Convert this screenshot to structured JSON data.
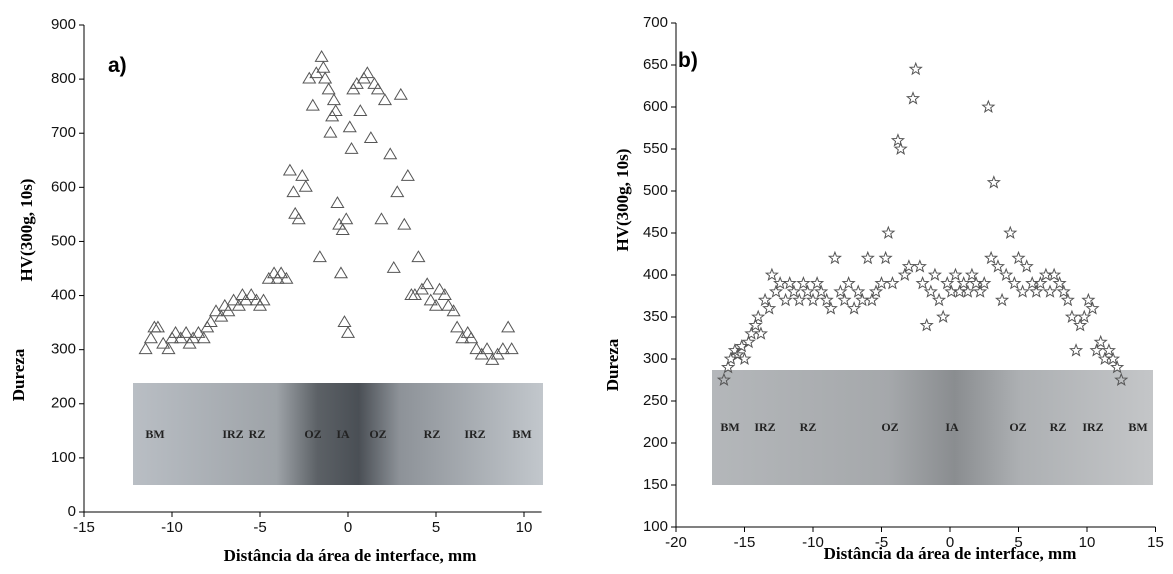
{
  "chart_data": [
    {
      "type": "scatter",
      "panel_label": "a)",
      "xlabel": "Distância da área de interface, mm",
      "ylabel": "HV(300g, 10s)",
      "ylabel_note": "Dureza",
      "marker": "triangle",
      "color": "#555555",
      "xlim": [
        -15,
        11
      ],
      "xticks": [
        -15,
        -10,
        -5,
        0,
        5,
        10
      ],
      "ylim": [
        0,
        900
      ],
      "yticks": [
        0,
        100,
        200,
        300,
        400,
        500,
        600,
        700,
        800,
        900
      ],
      "annotations": [
        "BM",
        "IRZ",
        "RZ",
        "OZ",
        "IA",
        "OZ",
        "RZ",
        "IRZ",
        "BM"
      ],
      "x": [
        -11.5,
        -11.2,
        -11,
        -10.8,
        -10.5,
        -10.2,
        -10,
        -9.8,
        -9.5,
        -9.2,
        -9,
        -8.8,
        -8.5,
        -8.2,
        -8,
        -7.8,
        -7.5,
        -7.2,
        -7,
        -6.8,
        -6.5,
        -6.2,
        -6,
        -5.8,
        -5.5,
        -5.2,
        -5,
        -4.8,
        -4.5,
        -4.2,
        -4,
        -3.8,
        -3.5,
        -3.3,
        -3.1,
        -3,
        -2.8,
        -2.6,
        -2.4,
        -2.2,
        -2,
        -1.8,
        -1.6,
        -1.5,
        -1.4,
        -1.3,
        -1.1,
        -1,
        -0.9,
        -0.8,
        -0.7,
        -0.6,
        -0.5,
        -0.4,
        -0.3,
        -0.2,
        -0.1,
        0,
        0.1,
        0.2,
        0.3,
        0.5,
        0.7,
        0.9,
        1.1,
        1.3,
        1.5,
        1.7,
        1.9,
        2.1,
        2.4,
        2.6,
        2.8,
        3,
        3.2,
        3.4,
        3.6,
        3.8,
        4,
        4.2,
        4.5,
        4.7,
        5,
        5.2,
        5.5,
        5.7,
        6,
        6.2,
        6.5,
        6.8,
        7,
        7.3,
        7.6,
        7.9,
        8.2,
        8.5,
        8.8,
        9.1,
        9.3
      ],
      "values": [
        300,
        320,
        340,
        340,
        310,
        300,
        320,
        330,
        320,
        330,
        310,
        320,
        330,
        320,
        340,
        350,
        370,
        360,
        380,
        370,
        390,
        380,
        400,
        390,
        400,
        390,
        380,
        390,
        430,
        440,
        430,
        440,
        430,
        630,
        590,
        550,
        540,
        620,
        600,
        800,
        750,
        810,
        470,
        840,
        820,
        800,
        780,
        700,
        730,
        760,
        740,
        570,
        530,
        440,
        520,
        350,
        540,
        330,
        710,
        670,
        780,
        790,
        740,
        800,
        810,
        690,
        790,
        780,
        540,
        760,
        660,
        450,
        590,
        770,
        530,
        620,
        400,
        400,
        470,
        410,
        420,
        390,
        380,
        410,
        400,
        380,
        370,
        340,
        320,
        330,
        320,
        300,
        290,
        300,
        280,
        290,
        300,
        340,
        300
      ]
    },
    {
      "type": "scatter",
      "panel_label": "b)",
      "xlabel": "Distância da área de interface, mm",
      "ylabel": "HV(300g, 10s)",
      "ylabel_note": "Dureza",
      "marker": "star",
      "color": "#555555",
      "xlim": [
        -20,
        15
      ],
      "xticks": [
        -20,
        -15,
        -10,
        -5,
        0,
        5,
        10,
        15
      ],
      "ylim": [
        100,
        700
      ],
      "yticks": [
        100,
        150,
        200,
        250,
        300,
        350,
        400,
        450,
        500,
        550,
        600,
        650,
        700
      ],
      "annotations": [
        "BM",
        "IRZ",
        "RZ",
        "OZ",
        "IA",
        "OZ",
        "RZ",
        "IRZ",
        "BM"
      ],
      "x": [
        -16.5,
        -16.2,
        -16,
        -15.7,
        -15.5,
        -15.2,
        -15,
        -14.7,
        -14.5,
        -14.2,
        -14,
        -13.8,
        -13.5,
        -13.2,
        -13,
        -12.7,
        -12.4,
        -12,
        -11.7,
        -11.4,
        -11,
        -10.7,
        -10.4,
        -10,
        -9.7,
        -9.4,
        -9,
        -8.7,
        -8.4,
        -8,
        -7.7,
        -7.4,
        -7,
        -6.7,
        -6.4,
        -6,
        -5.7,
        -5.4,
        -5,
        -4.7,
        -4.5,
        -4.2,
        -3.8,
        -3.6,
        -3.3,
        -3,
        -2.7,
        -2.5,
        -2.2,
        -2,
        -1.7,
        -1.4,
        -1.1,
        -0.8,
        -0.5,
        -0.2,
        0.1,
        0.4,
        0.7,
        1,
        1.3,
        1.6,
        1.9,
        2.2,
        2.5,
        2.8,
        3,
        3.2,
        3.5,
        3.8,
        4.1,
        4.4,
        4.7,
        5,
        5.3,
        5.6,
        6,
        6.3,
        6.6,
        7,
        7.3,
        7.6,
        8,
        8.3,
        8.6,
        8.9,
        9.2,
        9.5,
        9.8,
        10.1,
        10.4,
        10.7,
        11,
        11.3,
        11.6,
        11.9,
        12.2,
        12.5
      ],
      "values": [
        275,
        290,
        300,
        310,
        305,
        315,
        300,
        320,
        330,
        340,
        350,
        330,
        370,
        360,
        400,
        380,
        390,
        370,
        390,
        380,
        370,
        390,
        380,
        370,
        390,
        380,
        370,
        360,
        420,
        380,
        370,
        390,
        360,
        380,
        370,
        420,
        370,
        380,
        390,
        420,
        450,
        390,
        560,
        550,
        400,
        410,
        610,
        645,
        410,
        390,
        340,
        380,
        400,
        370,
        350,
        390,
        380,
        400,
        380,
        390,
        380,
        400,
        390,
        380,
        390,
        600,
        420,
        510,
        410,
        370,
        400,
        450,
        390,
        420,
        380,
        410,
        390,
        380,
        390,
        400,
        380,
        400,
        390,
        380,
        370,
        350,
        310,
        340,
        350,
        370,
        360,
        310,
        320,
        300,
        310,
        300,
        290,
        275
      ]
    }
  ]
}
